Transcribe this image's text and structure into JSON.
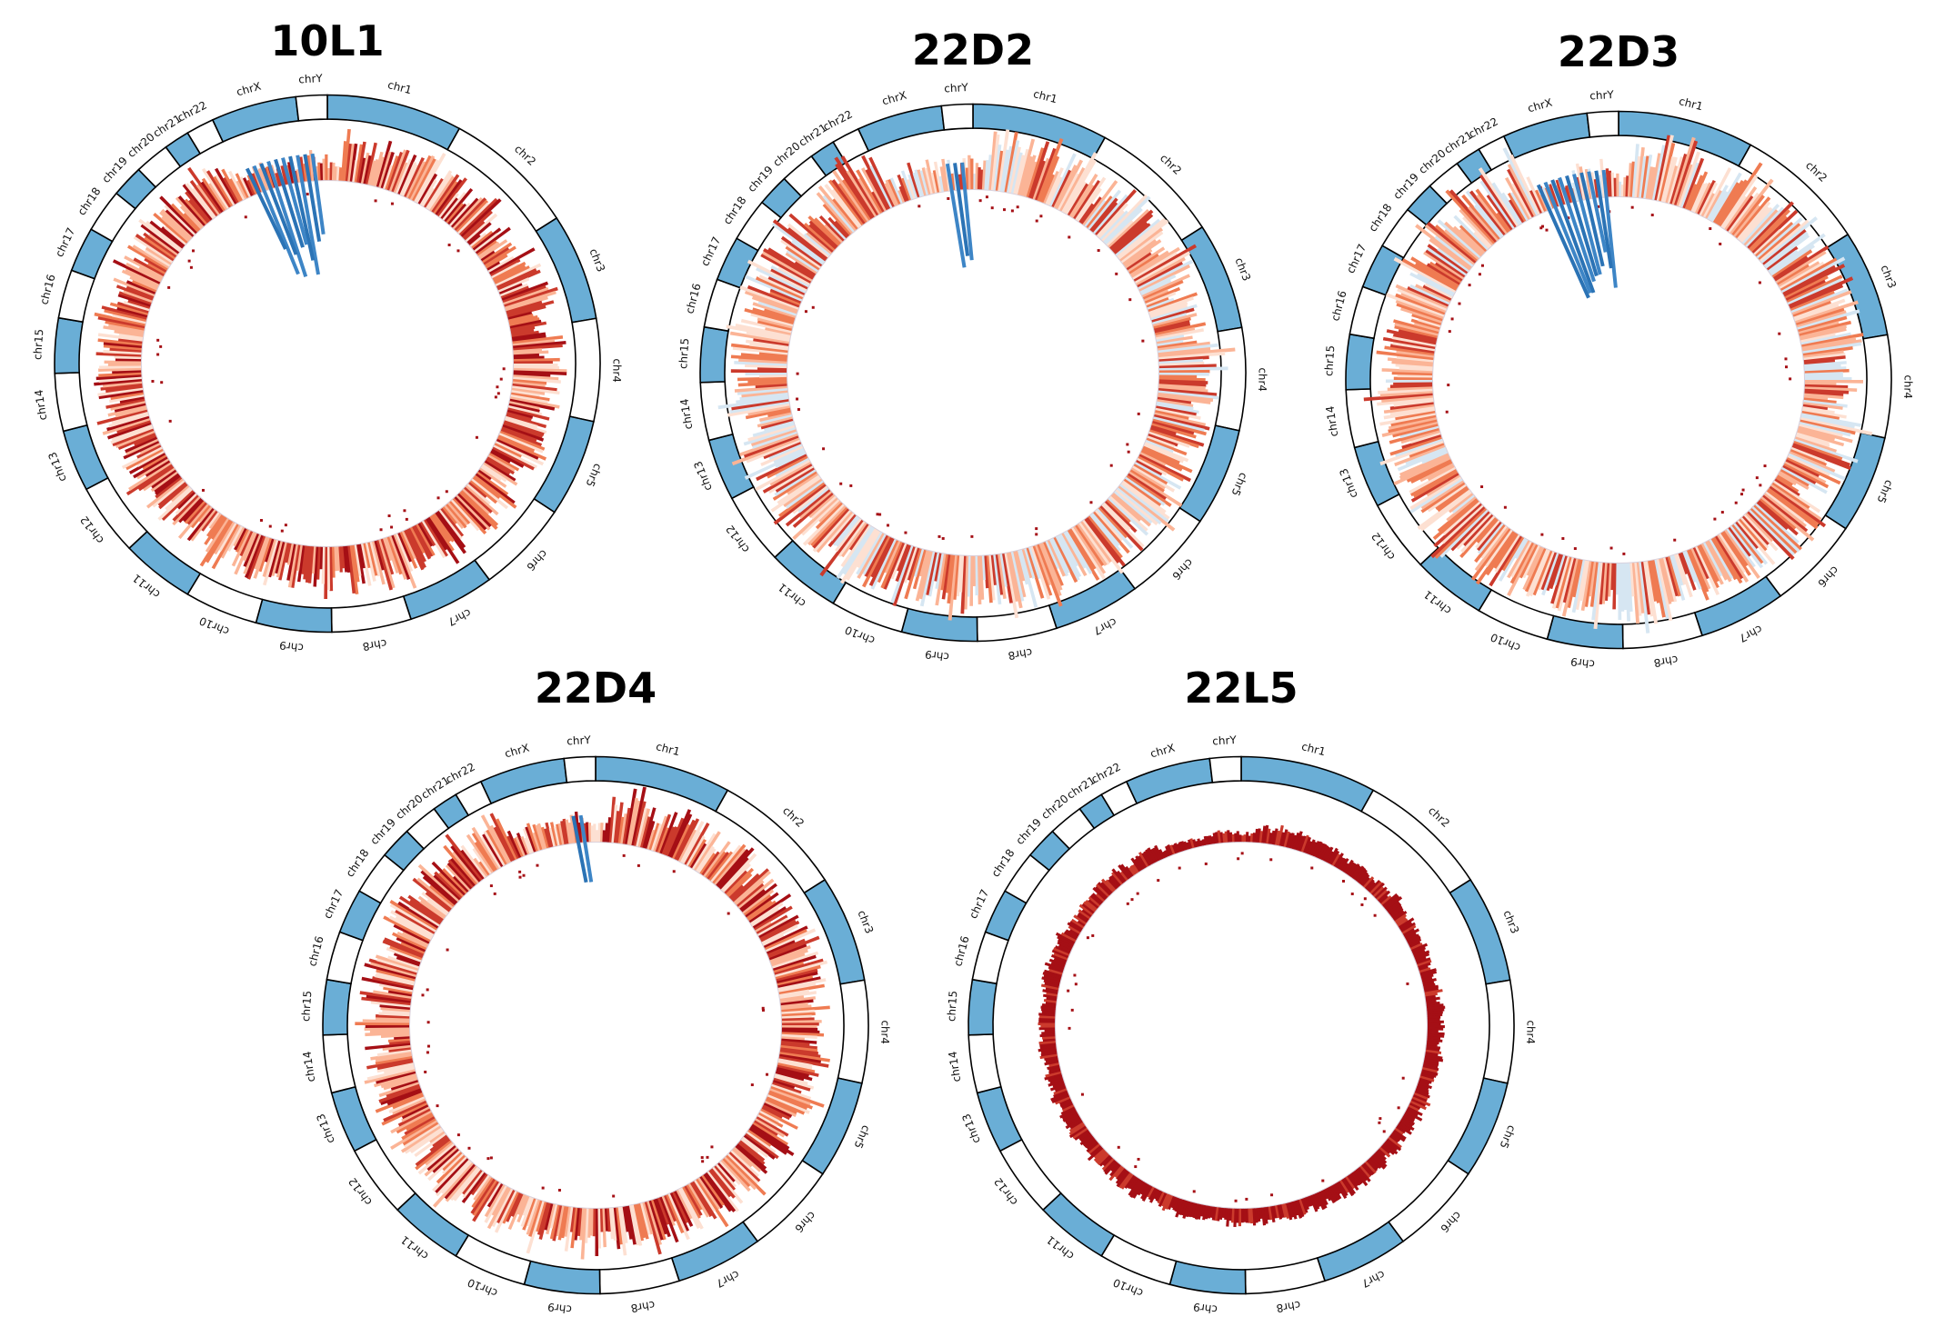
{
  "panels": [
    {
      "id": "p1",
      "title": "10L1",
      "profile": "red-blue-top"
    },
    {
      "id": "p2",
      "title": "22D2",
      "profile": "light-spiky"
    },
    {
      "id": "p3",
      "title": "22D3",
      "profile": "light-spiky-blue"
    },
    {
      "id": "p4",
      "title": "22D4",
      "profile": "orange-small-blue"
    },
    {
      "id": "p5",
      "title": "22L5",
      "profile": "dark-red-thin"
    }
  ],
  "chromosomes": [
    {
      "name": "chr1",
      "size": 248
    },
    {
      "name": "chr2",
      "size": 242
    },
    {
      "name": "chr3",
      "size": 198
    },
    {
      "name": "chr4",
      "size": 190
    },
    {
      "name": "chr5",
      "size": 181
    },
    {
      "name": "chr6",
      "size": 171
    },
    {
      "name": "chr7",
      "size": 159
    },
    {
      "name": "chr8",
      "size": 145
    },
    {
      "name": "chr9",
      "size": 138
    },
    {
      "name": "chr10",
      "size": 134
    },
    {
      "name": "chr11",
      "size": 135
    },
    {
      "name": "chr12",
      "size": 133
    },
    {
      "name": "chr13",
      "size": 114
    },
    {
      "name": "chr14",
      "size": 107
    },
    {
      "name": "chr15",
      "size": 102
    },
    {
      "name": "chr16",
      "size": 90
    },
    {
      "name": "chr17",
      "size": 83
    },
    {
      "name": "chr18",
      "size": 80
    },
    {
      "name": "chr19",
      "size": 59
    },
    {
      "name": "chr20",
      "size": 64
    },
    {
      "name": "chr21",
      "size": 47
    },
    {
      "name": "chr22",
      "size": 51
    },
    {
      "name": "chrX",
      "size": 156
    },
    {
      "name": "chrY",
      "size": 57
    }
  ],
  "colors": {
    "ideogram_blue": "#6aaed6",
    "ideogram_white": "#ffffff",
    "outline": "#000000",
    "dark_red": "#a50f15",
    "red": "#cb3a2c",
    "orange": "#ef7b52",
    "light_orange": "#fbb496",
    "pale": "#fde0d2",
    "pale_blue": "#d6e6f2",
    "blue": "#2b73b5",
    "inner_ring": "#d8d0dc"
  }
}
